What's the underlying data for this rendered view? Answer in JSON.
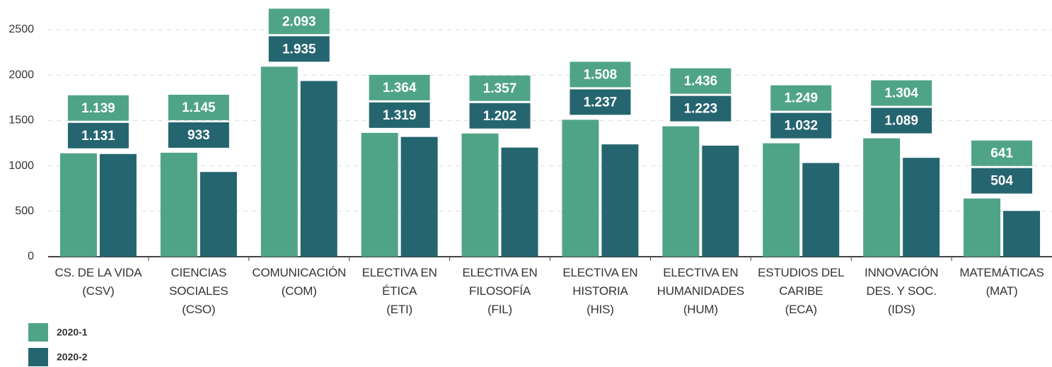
{
  "chart_data": {
    "type": "bar",
    "categories": [
      "CS. DE LA VIDA\n(CSV)",
      "CIENCIAS\nSOCIALES\n(CSO)",
      "COMUNICACIÓN\n(COM)",
      "ELECTIVA EN\nÉTICA\n(ETI)",
      "ELECTIVA EN\nFILOSOFÍA\n(FIL)",
      "ELECTIVA EN\nHISTORIA\n(HIS)",
      "ELECTIVA EN\nHUMANIDADES\n(HUM)",
      "ESTUDIOS DEL\nCARIBE\n(ECA)",
      "INNOVACIÓN\nDES. Y SOC.\n(IDS)",
      "MATEMÁTICAS\n(MAT)"
    ],
    "series": [
      {
        "name": "2020-1",
        "color": "#4fa487",
        "values": [
          1139,
          1145,
          2093,
          1364,
          1357,
          1508,
          1436,
          1249,
          1304,
          641
        ],
        "value_labels": [
          "1.139",
          "1.145",
          "2.093",
          "1.364",
          "1.357",
          "1.508",
          "1.436",
          "1.249",
          "1.304",
          "641"
        ]
      },
      {
        "name": "2020-2",
        "color": "#256570",
        "values": [
          1131,
          933,
          1935,
          1319,
          1202,
          1237,
          1223,
          1032,
          1089,
          504
        ],
        "value_labels": [
          "1.131",
          "933",
          "1.935",
          "1.319",
          "1.202",
          "1.237",
          "1.223",
          "1.032",
          "1.089",
          "504"
        ]
      }
    ],
    "ylim": [
      0,
      2500
    ],
    "yticks": [
      0,
      500,
      1000,
      1500,
      2000,
      2500
    ],
    "grid": true,
    "legend": "bottom-left"
  }
}
